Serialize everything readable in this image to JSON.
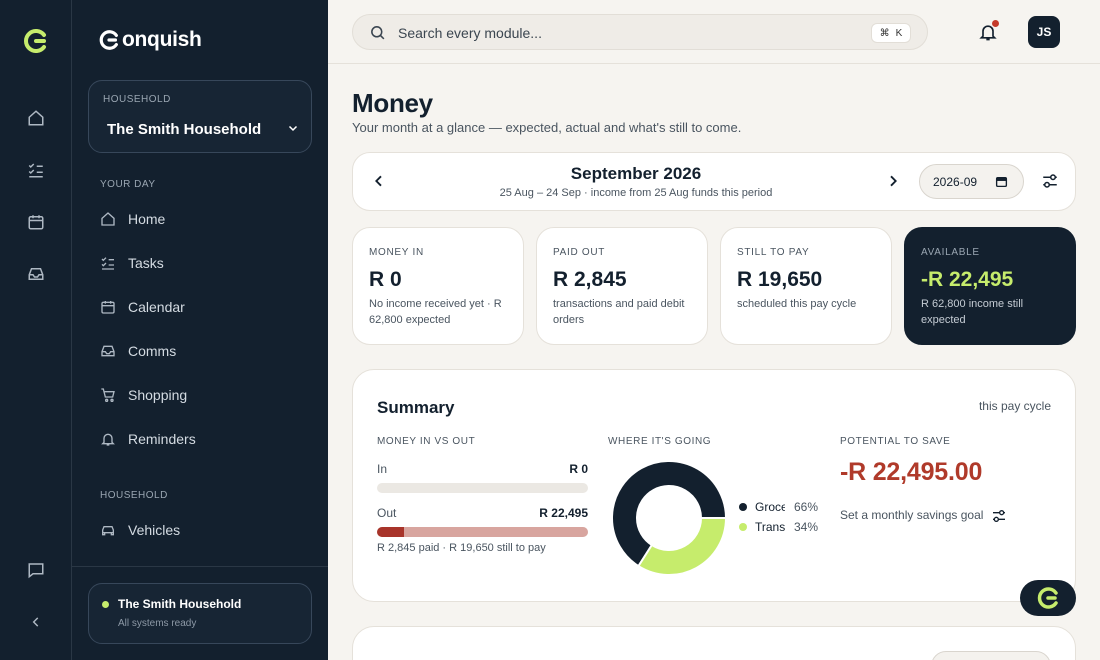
{
  "rail": {
    "items": [
      "home-icon",
      "tasks-icon",
      "calendar-icon",
      "inbox-icon"
    ],
    "bottom": [
      "chat-icon",
      "collapse-icon"
    ]
  },
  "sidebar": {
    "brand": "onquish",
    "household_label": "HOUSEHOLD",
    "household_value": "The Smith Household",
    "section_your_day": "YOUR DAY",
    "nav_your_day": [
      {
        "label": "Home",
        "icon": "home-icon"
      },
      {
        "label": "Tasks",
        "icon": "tasks-icon"
      },
      {
        "label": "Calendar",
        "icon": "calendar-icon"
      },
      {
        "label": "Comms",
        "icon": "inbox-icon"
      },
      {
        "label": "Shopping",
        "icon": "cart-icon"
      },
      {
        "label": "Reminders",
        "icon": "bell-icon"
      }
    ],
    "section_household": "HOUSEHOLD",
    "nav_household": [
      {
        "label": "Vehicles",
        "icon": "car-icon"
      }
    ],
    "status": {
      "title": "The Smith Household",
      "subtitle": "All systems ready"
    }
  },
  "topbar": {
    "search_placeholder": "Search every module...",
    "shortcut_mod": "⌘",
    "shortcut_key": "K",
    "avatar_initials": "JS"
  },
  "page": {
    "title": "Money",
    "subtitle": "Your month at a glance — expected, actual and what's still to come."
  },
  "period": {
    "title": "September 2026",
    "subtitle": "25 Aug – 24 Sep · income from 25 Aug funds this period",
    "month_value": "2026-09"
  },
  "stats": [
    {
      "label": "MONEY IN",
      "value": "R 0",
      "note": "No income received yet · R 62,800 expected"
    },
    {
      "label": "PAID OUT",
      "value": "R 2,845",
      "note": "transactions and paid debit orders"
    },
    {
      "label": "STILL TO PAY",
      "value": "R 19,650",
      "note": "scheduled this pay cycle"
    },
    {
      "label": "AVAILABLE",
      "value": "-R 22,495",
      "note": "R 62,800 income still expected"
    }
  ],
  "summary": {
    "title": "Summary",
    "cycle": "this pay cycle",
    "money_label": "MONEY IN VS OUT",
    "in_label": "In",
    "in_value": "R 0",
    "out_label": "Out",
    "out_value": "R 22,495",
    "out_paid_fraction": 0.126,
    "out_note": "R 2,845 paid · R 19,650 still to pay",
    "where_label": "WHERE IT'S GOING",
    "categories": [
      {
        "name": "Groceries",
        "pct_label": "66%",
        "pct": 66,
        "color": "#13202e"
      },
      {
        "name": "Transport",
        "pct_label": "34%",
        "pct": 34,
        "color": "#c6ec6c"
      }
    ],
    "save_label": "POTENTIAL TO SAVE",
    "save_value": "-R 22,495.00",
    "save_goal": "Set a monthly savings goal"
  },
  "colors": {
    "navy": "#13202e",
    "lime": "#c6ec6c",
    "red": "#b03a2a"
  }
}
